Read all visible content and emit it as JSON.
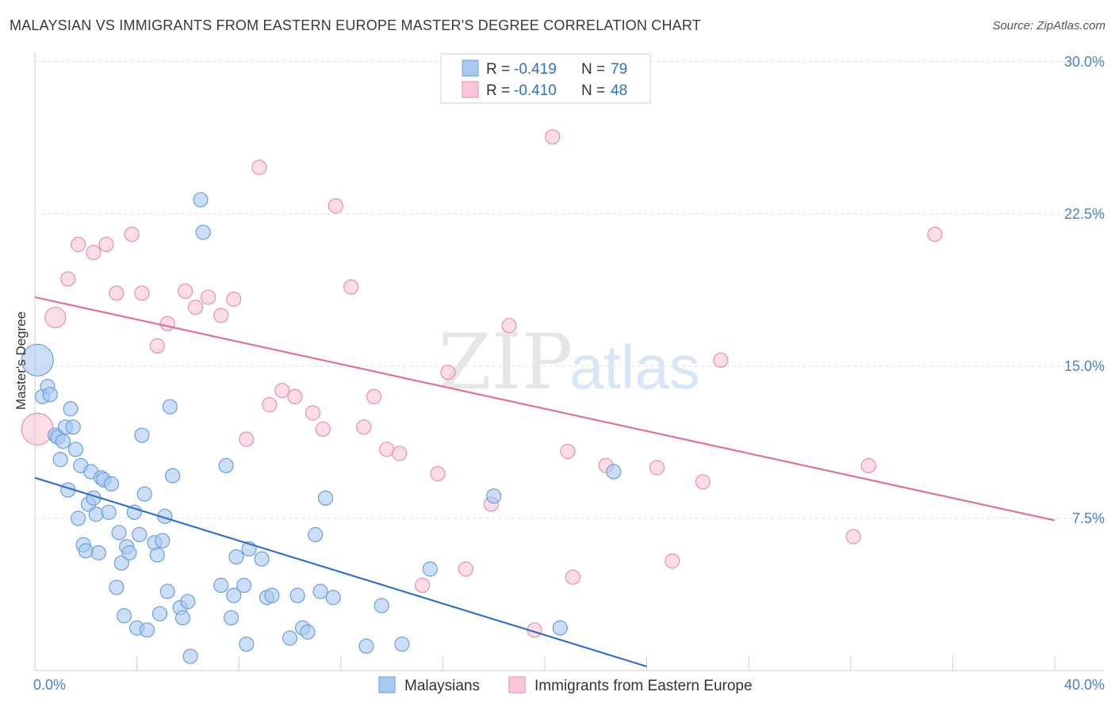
{
  "title": "MALAYSIAN VS IMMIGRANTS FROM EASTERN EUROPE MASTER'S DEGREE CORRELATION CHART",
  "source": "Source: ZipAtlas.com",
  "watermark": {
    "zip": "ZIP",
    "atlas": "atlas"
  },
  "legend_box": {
    "rows": [
      {
        "r_label": "R =",
        "r_value": "-0.419",
        "n_label": "N =",
        "n_value": "79",
        "color": "#a9c8f0",
        "stroke": "#6a9fe0"
      },
      {
        "r_label": "R =",
        "r_value": "-0.410",
        "n_label": "N =",
        "n_value": "48",
        "color": "#f8c6d4",
        "stroke": "#e98fab"
      }
    ]
  },
  "colors": {
    "blue_fill": "#a9c8f0",
    "blue_stroke": "#6a9fe0",
    "blue_line": "#2f6fcf",
    "pink_fill": "#f8c6d4",
    "pink_stroke": "#e98fab",
    "pink_line": "#e0709a"
  },
  "chart_data": {
    "type": "scatter",
    "title": "MALAYSIAN VS IMMIGRANTS FROM EASTERN EUROPE MASTER'S DEGREE CORRELATION CHART",
    "xlabel": "",
    "ylabel": "Master's Degree",
    "xlim": [
      0,
      40
    ],
    "ylim": [
      0,
      30
    ],
    "x_tick_labels": [
      "0.0%",
      "40.0%"
    ],
    "y_ticks": [
      7.5,
      15.0,
      22.5,
      30.0
    ],
    "y_tick_labels": [
      "7.5%",
      "15.0%",
      "22.5%",
      "30.0%"
    ],
    "series": [
      {
        "name": "Malaysians",
        "trend": {
          "x": [
            0,
            24
          ],
          "y": [
            9.5,
            0.2
          ]
        },
        "points": [
          [
            0.1,
            15.3,
            3
          ],
          [
            0.3,
            13.5,
            1
          ],
          [
            0.5,
            14.0,
            1
          ],
          [
            0.6,
            13.6,
            1
          ],
          [
            0.8,
            11.6,
            1
          ],
          [
            0.9,
            11.5,
            1
          ],
          [
            1.0,
            10.4,
            1
          ],
          [
            1.1,
            11.3,
            1
          ],
          [
            1.2,
            12.0,
            1
          ],
          [
            1.3,
            8.9,
            1
          ],
          [
            1.4,
            12.9,
            1
          ],
          [
            1.5,
            12.0,
            1
          ],
          [
            1.6,
            10.9,
            1
          ],
          [
            1.7,
            7.5,
            1
          ],
          [
            1.8,
            10.1,
            1
          ],
          [
            1.9,
            6.2,
            1
          ],
          [
            2.0,
            5.9,
            1
          ],
          [
            2.1,
            8.2,
            1
          ],
          [
            2.2,
            9.8,
            1
          ],
          [
            2.3,
            8.5,
            1
          ],
          [
            2.4,
            7.7,
            1
          ],
          [
            2.5,
            5.8,
            1
          ],
          [
            2.6,
            9.5,
            1
          ],
          [
            2.7,
            9.4,
            1
          ],
          [
            2.9,
            7.8,
            1
          ],
          [
            3.0,
            9.2,
            1
          ],
          [
            3.2,
            4.1,
            1
          ],
          [
            3.3,
            6.8,
            1
          ],
          [
            3.4,
            5.3,
            1
          ],
          [
            3.5,
            2.7,
            1
          ],
          [
            3.6,
            6.1,
            1
          ],
          [
            3.7,
            5.8,
            1
          ],
          [
            3.9,
            7.8,
            1
          ],
          [
            4.0,
            2.1,
            1
          ],
          [
            4.1,
            6.7,
            1
          ],
          [
            4.2,
            11.6,
            1
          ],
          [
            4.3,
            8.7,
            1
          ],
          [
            4.4,
            2.0,
            1
          ],
          [
            4.7,
            6.3,
            1
          ],
          [
            4.8,
            5.7,
            1
          ],
          [
            4.9,
            2.8,
            1
          ],
          [
            5.0,
            6.4,
            1
          ],
          [
            5.1,
            7.6,
            1
          ],
          [
            5.2,
            3.9,
            1
          ],
          [
            5.3,
            13.0,
            1
          ],
          [
            5.4,
            9.6,
            1
          ],
          [
            5.7,
            3.1,
            1
          ],
          [
            5.8,
            2.6,
            1
          ],
          [
            6.0,
            3.4,
            1
          ],
          [
            6.1,
            0.7,
            1
          ],
          [
            6.5,
            23.2,
            1
          ],
          [
            6.6,
            21.6,
            1
          ],
          [
            7.3,
            4.2,
            1
          ],
          [
            7.5,
            10.1,
            1
          ],
          [
            7.7,
            2.6,
            1
          ],
          [
            7.8,
            3.7,
            1
          ],
          [
            7.9,
            5.6,
            1
          ],
          [
            8.2,
            4.2,
            1
          ],
          [
            8.3,
            1.3,
            1
          ],
          [
            8.4,
            6.0,
            1
          ],
          [
            8.9,
            5.5,
            1
          ],
          [
            9.1,
            3.6,
            1
          ],
          [
            9.3,
            3.7,
            1
          ],
          [
            10.0,
            1.6,
            1
          ],
          [
            10.3,
            3.7,
            1
          ],
          [
            10.5,
            2.1,
            1
          ],
          [
            10.7,
            1.9,
            1
          ],
          [
            11.0,
            6.7,
            1
          ],
          [
            11.2,
            3.9,
            1
          ],
          [
            11.4,
            8.5,
            1
          ],
          [
            11.7,
            3.6,
            1
          ],
          [
            13.0,
            1.2,
            1
          ],
          [
            13.6,
            3.2,
            1
          ],
          [
            14.4,
            1.3,
            1
          ],
          [
            15.5,
            5.0,
            1
          ],
          [
            18.0,
            8.6,
            1
          ],
          [
            20.6,
            2.1,
            1
          ],
          [
            22.7,
            9.8,
            1
          ]
        ]
      },
      {
        "name": "Immigrants from Eastern Europe",
        "trend": {
          "x": [
            0,
            40
          ],
          "y": [
            18.4,
            7.4
          ]
        },
        "points": [
          [
            0.1,
            11.9,
            3
          ],
          [
            0.8,
            17.4,
            2
          ],
          [
            1.3,
            19.3,
            1
          ],
          [
            1.7,
            21.0,
            1
          ],
          [
            2.3,
            20.6,
            1
          ],
          [
            2.8,
            21.0,
            1
          ],
          [
            3.2,
            18.6,
            1
          ],
          [
            3.8,
            21.5,
            1
          ],
          [
            4.2,
            18.6,
            1
          ],
          [
            4.8,
            16.0,
            1
          ],
          [
            5.2,
            17.1,
            1
          ],
          [
            5.9,
            18.7,
            1
          ],
          [
            6.3,
            17.9,
            1
          ],
          [
            6.8,
            18.4,
            1
          ],
          [
            7.3,
            17.5,
            1
          ],
          [
            7.8,
            18.3,
            1
          ],
          [
            8.3,
            11.4,
            1
          ],
          [
            8.8,
            24.8,
            1
          ],
          [
            9.2,
            13.1,
            1
          ],
          [
            9.7,
            13.8,
            1
          ],
          [
            10.2,
            13.5,
            1
          ],
          [
            10.9,
            12.7,
            1
          ],
          [
            11.3,
            11.9,
            1
          ],
          [
            11.8,
            22.9,
            1
          ],
          [
            12.4,
            18.9,
            1
          ],
          [
            12.9,
            12.0,
            1
          ],
          [
            13.3,
            13.5,
            1
          ],
          [
            13.8,
            10.9,
            1
          ],
          [
            14.3,
            10.7,
            1
          ],
          [
            15.2,
            4.2,
            1
          ],
          [
            15.8,
            9.7,
            1
          ],
          [
            16.2,
            14.7,
            1
          ],
          [
            16.9,
            5.0,
            1
          ],
          [
            17.9,
            8.2,
            1
          ],
          [
            18.6,
            17.0,
            1
          ],
          [
            19.6,
            2.0,
            1
          ],
          [
            20.3,
            26.3,
            1
          ],
          [
            20.9,
            10.8,
            1
          ],
          [
            21.1,
            4.6,
            1
          ],
          [
            22.4,
            10.1,
            1
          ],
          [
            24.4,
            10.0,
            1
          ],
          [
            25.0,
            5.4,
            1
          ],
          [
            26.2,
            9.3,
            1
          ],
          [
            26.9,
            15.3,
            1
          ],
          [
            32.1,
            6.6,
            1
          ],
          [
            32.7,
            10.1,
            1
          ],
          [
            35.3,
            21.5,
            1
          ]
        ]
      }
    ]
  },
  "bottom_legend": {
    "items": [
      "Malaysians",
      "Immigrants from Eastern Europe"
    ]
  }
}
